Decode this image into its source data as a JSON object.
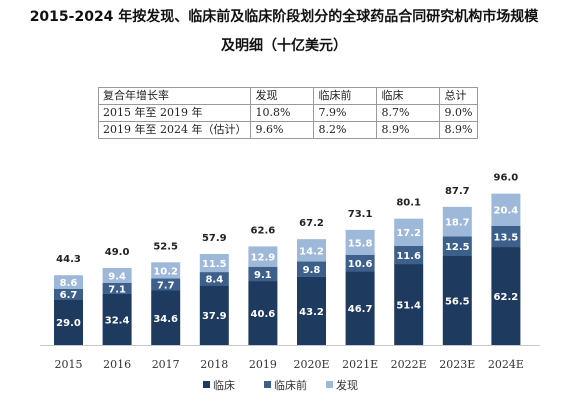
{
  "title_line1": "2015-2024 年按发现、临床前及临床阶段划分的全球药品合同研究机构市场规模",
  "title_line2": "及明细（十亿美元）",
  "cagr_table": {
    "headers": [
      "复合年增长率",
      "发现",
      "临床前",
      "临床",
      "总计"
    ],
    "rows": [
      [
        "2015 年至 2019 年",
        "10.8%",
        "7.9%",
        "8.7%",
        "9.0%"
      ],
      [
        "2019 年至 2024 年（估计）",
        "9.6%",
        "8.2%",
        "8.9%",
        "8.9%"
      ]
    ]
  },
  "chart_data": {
    "type": "bar",
    "stacked": true,
    "categories": [
      "2015",
      "2016",
      "2017",
      "2018",
      "2019",
      "2020E",
      "2021E",
      "2022E",
      "2023E",
      "2024E"
    ],
    "series": [
      {
        "name": "临床",
        "color": "#1f3a5f",
        "values": [
          29.0,
          32.4,
          34.6,
          37.9,
          40.6,
          43.2,
          46.7,
          51.4,
          56.5,
          62.2
        ]
      },
      {
        "name": "临床前",
        "color": "#3d5f8c",
        "values": [
          6.7,
          7.1,
          7.7,
          8.4,
          9.1,
          9.8,
          10.6,
          11.6,
          12.5,
          13.5
        ]
      },
      {
        "name": "发现",
        "color": "#9db8d9",
        "values": [
          8.6,
          9.4,
          10.2,
          11.5,
          12.9,
          14.2,
          15.8,
          17.2,
          18.7,
          20.4
        ]
      }
    ],
    "totals": [
      44.3,
      49.0,
      52.5,
      57.9,
      62.6,
      67.2,
      73.1,
      80.1,
      87.7,
      96.0
    ],
    "ylim": [
      0,
      96.0
    ],
    "legend_position": "bottom",
    "grid": false
  }
}
